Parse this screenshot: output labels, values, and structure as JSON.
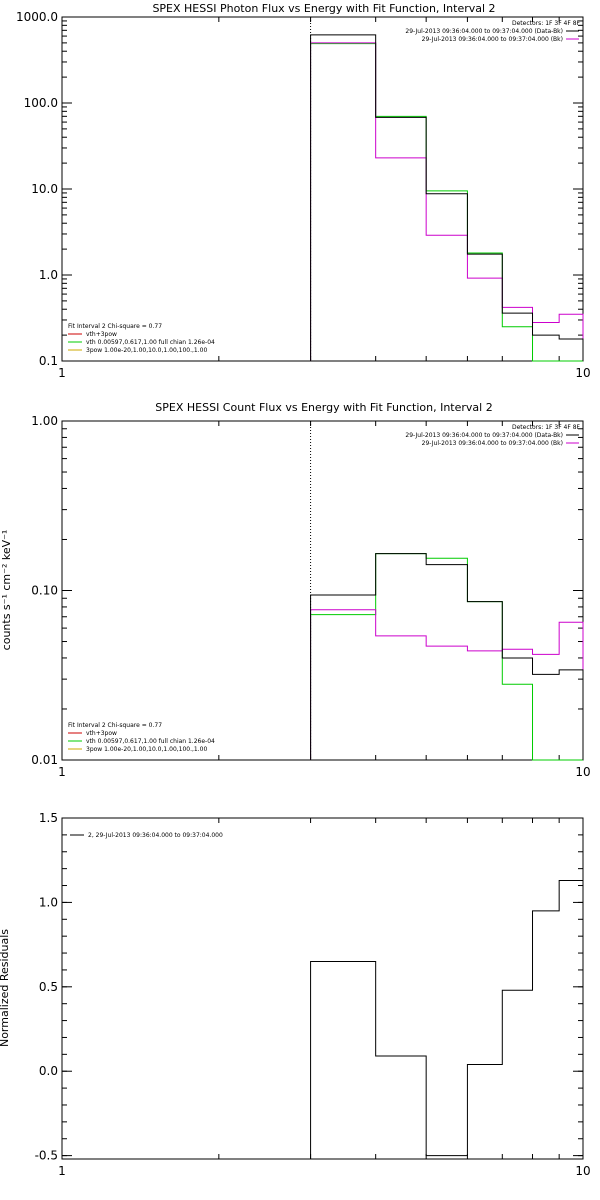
{
  "chart_data": [
    {
      "type": "line",
      "title": "SPEX HESSI Photon Flux vs Energy with Fit Function, Interval 2",
      "xlabel": "",
      "ylabel": "",
      "x_scale": "log",
      "y_scale": "log",
      "xlim": [
        1,
        10
      ],
      "ylim": [
        0.1,
        1000
      ],
      "x_ticks": [
        "1",
        "10"
      ],
      "y_ticks": [
        "0.1",
        "1.0",
        "10.0",
        "100.0",
        "1000.0"
      ],
      "y_tick_values": [
        0.1,
        1,
        10,
        100,
        1000
      ],
      "vline_x": 3,
      "bin_edges": [
        3,
        4,
        5,
        6,
        7,
        8,
        9,
        10
      ],
      "header": {
        "detectors": "Detectors: 1F 3F 4F 8F",
        "lines": [
          {
            "text": "29-Jul-2013 09:36:04.000 to 09:37:04.000 (Data-Bk)",
            "color": "#000000"
          },
          {
            "text": "29-Jul-2013 09:36:04.000 to 09:37:04.000 (Bk)",
            "color": "#cc00cc"
          }
        ]
      },
      "fit_legend": {
        "title": "Fit Interval 2   Chi-square = 0.77",
        "items": [
          {
            "text": "vth+3pow",
            "color": "#cc0000"
          },
          {
            "text": "vth 0.00597,0.617,1.00  full chian 1.26e-04",
            "color": "#00cc00"
          },
          {
            "text": "3pow 1.00e-20,1.00,10.0,1.00,100.,1.00",
            "color": "#ccaa00"
          }
        ]
      },
      "series": [
        {
          "color": "#000000",
          "values": [
            620,
            68,
            8.8,
            1.75,
            0.36,
            0.2,
            0.18
          ]
        },
        {
          "color": "#cc00cc",
          "values": [
            500,
            23,
            2.9,
            0.92,
            0.42,
            0.28,
            0.35
          ]
        },
        {
          "color": "#00cc00",
          "values": [
            490,
            70,
            9.5,
            1.8,
            0.25,
            0.08,
            0.08
          ]
        }
      ]
    },
    {
      "type": "line",
      "title": "SPEX HESSI Count Flux vs Energy with Fit Function, Interval 2",
      "xlabel": "",
      "ylabel": "counts s⁻¹ cm⁻² keV⁻¹",
      "x_scale": "log",
      "y_scale": "log",
      "xlim": [
        1,
        10
      ],
      "ylim": [
        0.01,
        1.0
      ],
      "x_ticks": [
        "1",
        "10"
      ],
      "y_ticks": [
        "0.01",
        "0.10",
        "1.00"
      ],
      "y_tick_values": [
        0.01,
        0.1,
        1
      ],
      "vline_x": 3,
      "bin_edges": [
        3,
        4,
        5,
        6,
        7,
        8,
        9,
        10
      ],
      "header": {
        "detectors": "Detectors: 1F 3F 4F 8F",
        "lines": [
          {
            "text": "29-Jul-2013 09:36:04.000 to 09:37:04.000 (Data-Bk)",
            "color": "#000000"
          },
          {
            "text": "29-Jul-2013 09:36:04.000 to 09:37:04.000 (Bk)",
            "color": "#cc00cc"
          }
        ]
      },
      "fit_legend": {
        "title": "Fit Interval 2   Chi-square = 0.77",
        "items": [
          {
            "text": "vth+3pow",
            "color": "#cc0000"
          },
          {
            "text": "vth 0.00597,0.617,1.00  full chian 1.26e-04",
            "color": "#00cc00"
          },
          {
            "text": "3pow 1.00e-20,1.00,10.0,1.00,100.,1.00",
            "color": "#ccaa00"
          }
        ]
      },
      "series": [
        {
          "color": "#000000",
          "values": [
            0.094,
            0.165,
            0.142,
            0.086,
            0.04,
            0.032,
            0.034
          ]
        },
        {
          "color": "#cc00cc",
          "values": [
            0.077,
            0.054,
            0.047,
            0.044,
            0.045,
            0.042,
            0.065
          ]
        },
        {
          "color": "#00cc00",
          "values": [
            0.072,
            0.165,
            0.155,
            0.086,
            0.028,
            0.0095,
            0.0095
          ]
        }
      ]
    },
    {
      "type": "line",
      "title": "",
      "xlabel": "",
      "ylabel": "Normalized Residuals",
      "x_scale": "log",
      "y_scale": "linear",
      "xlim": [
        1,
        10
      ],
      "ylim": [
        -0.52,
        1.5
      ],
      "x_ticks": [
        "1",
        "10"
      ],
      "y_ticks": [
        "-0.5",
        "0.0",
        "0.5",
        "1.0",
        "1.5"
      ],
      "y_tick_values": [
        -0.5,
        0,
        0.5,
        1,
        1.5
      ],
      "bin_edges": [
        3,
        4,
        5,
        6,
        7,
        8,
        9,
        10
      ],
      "legend": {
        "text": "2, 29-Jul-2013 09:36:04.000 to 09:37:04.000",
        "color": "#000000"
      },
      "series": [
        {
          "color": "#000000",
          "values": [
            0.65,
            0.09,
            -0.5,
            0.04,
            0.48,
            0.95,
            1.13
          ]
        }
      ]
    }
  ]
}
